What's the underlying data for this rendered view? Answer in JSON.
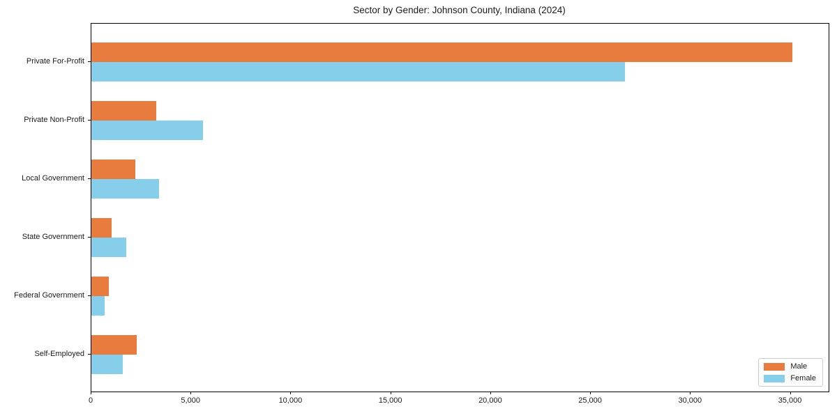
{
  "chart_data": {
    "type": "bar",
    "orientation": "horizontal",
    "title": "Sector by Gender: Johnson County, Indiana (2024)",
    "categories": [
      "Private For-Profit",
      "Private Non-Profit",
      "Local Government",
      "State Government",
      "Federal Government",
      "Self-Employed"
    ],
    "series": [
      {
        "name": "Male",
        "color": "#e87b3e",
        "values": [
          35100,
          3250,
          2200,
          1000,
          870,
          2280
        ]
      },
      {
        "name": "Female",
        "color": "#87ceeb",
        "values": [
          26700,
          5600,
          3400,
          1730,
          670,
          1560
        ]
      }
    ],
    "xlim": [
      0,
      36900
    ],
    "x_ticks": [
      {
        "value": 0,
        "label": "0"
      },
      {
        "value": 5000,
        "label": "5,000"
      },
      {
        "value": 10000,
        "label": "10,000"
      },
      {
        "value": 15000,
        "label": "15,000"
      },
      {
        "value": 20000,
        "label": "20,000"
      },
      {
        "value": 25000,
        "label": "25,000"
      },
      {
        "value": 30000,
        "label": "30,000"
      },
      {
        "value": 35000,
        "label": "35,000"
      }
    ],
    "xlabel": "",
    "ylabel": "",
    "grid": false,
    "legend_position": "lower right",
    "background_color": "#ffffff",
    "spine_color": "#000000"
  }
}
